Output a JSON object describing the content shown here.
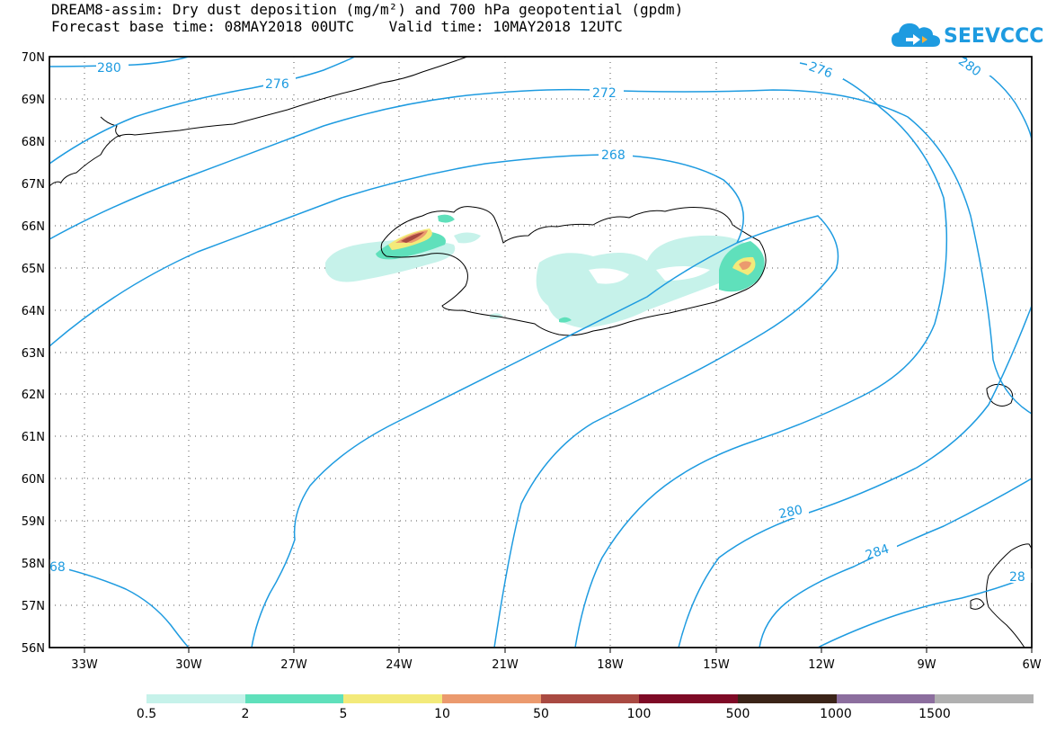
{
  "header": {
    "title_line1": "DREAM8-assim: Dry dust deposition (mg/m²) and 700 hPa geopotential (gpdm)",
    "title_line2": "Forecast base time: 08MAY2018 00UTC    Valid time: 10MAY2018 12UTC"
  },
  "logo": {
    "text": "SEEVCCC",
    "color": "#1e9be0",
    "icon": "cloud-icon"
  },
  "map": {
    "lat_labels": [
      "70N",
      "69N",
      "68N",
      "67N",
      "66N",
      "65N",
      "64N",
      "63N",
      "62N",
      "61N",
      "60N",
      "59N",
      "58N",
      "57N",
      "56N"
    ],
    "lon_labels": [
      "33W",
      "30W",
      "27W",
      "24W",
      "21W",
      "18W",
      "15W",
      "12W",
      "9W",
      "6W"
    ],
    "contour_color": "#1e9be0",
    "contour_labels": [
      "280",
      "276",
      "272",
      "268",
      "276",
      "280",
      "280",
      "284",
      "68",
      "28"
    ]
  },
  "legend": {
    "colors": [
      "#c6f2ea",
      "#5fe0bb",
      "#f3ea7a",
      "#eb9a6e",
      "#a94a42",
      "#7e0a26",
      "#3b2418",
      "#8c6e9e",
      "#b0b0b0"
    ],
    "labels": [
      "0.5",
      "2",
      "5",
      "10",
      "50",
      "100",
      "500",
      "1000",
      "1500"
    ]
  }
}
